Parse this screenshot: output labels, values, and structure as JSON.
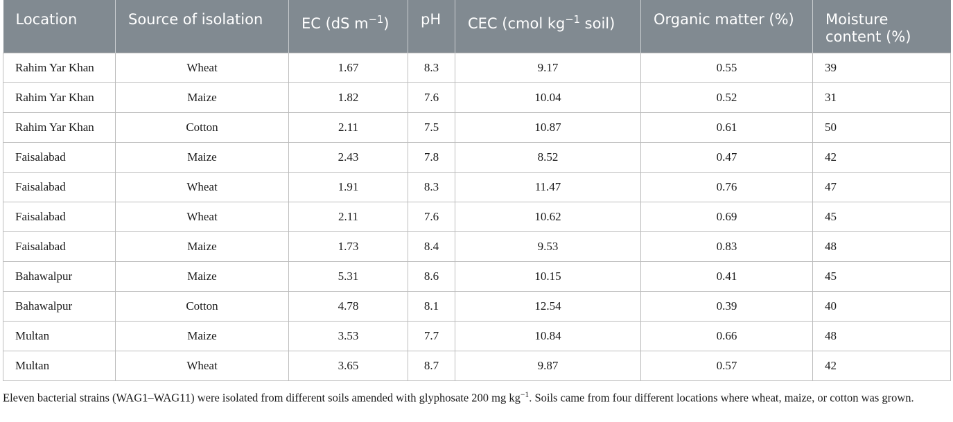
{
  "table": {
    "headers": {
      "location": "Location",
      "source": "Source of isolation",
      "ec_main": "EC (dS m",
      "ec_sup": "−1",
      "ec_end": ")",
      "ph": "pH",
      "cec_main": "CEC (cmol kg",
      "cec_sup": "−1",
      "cec_end": " soil)",
      "om": "Organic matter (%)",
      "mc_line1": "Moisture",
      "mc_line2": "content (%)"
    },
    "rows": [
      {
        "location": "Rahim Yar Khan",
        "source": "Wheat",
        "ec": "1.67",
        "ph": "8.3",
        "cec": "9.17",
        "om": "0.55",
        "mc": "39"
      },
      {
        "location": "Rahim Yar Khan",
        "source": "Maize",
        "ec": "1.82",
        "ph": "7.6",
        "cec": "10.04",
        "om": "0.52",
        "mc": "31"
      },
      {
        "location": "Rahim Yar Khan",
        "source": "Cotton",
        "ec": "2.11",
        "ph": "7.5",
        "cec": "10.87",
        "om": "0.61",
        "mc": "50"
      },
      {
        "location": "Faisalabad",
        "source": "Maize",
        "ec": "2.43",
        "ph": "7.8",
        "cec": "8.52",
        "om": "0.47",
        "mc": "42"
      },
      {
        "location": "Faisalabad",
        "source": "Wheat",
        "ec": "1.91",
        "ph": "8.3",
        "cec": "11.47",
        "om": "0.76",
        "mc": "47"
      },
      {
        "location": "Faisalabad",
        "source": "Wheat",
        "ec": "2.11",
        "ph": "7.6",
        "cec": "10.62",
        "om": "0.69",
        "mc": "45"
      },
      {
        "location": "Faisalabad",
        "source": "Maize",
        "ec": "1.73",
        "ph": "8.4",
        "cec": "9.53",
        "om": "0.83",
        "mc": "48"
      },
      {
        "location": "Bahawalpur",
        "source": "Maize",
        "ec": "5.31",
        "ph": "8.6",
        "cec": "10.15",
        "om": "0.41",
        "mc": "45"
      },
      {
        "location": "Bahawalpur",
        "source": "Cotton",
        "ec": "4.78",
        "ph": "8.1",
        "cec": "12.54",
        "om": "0.39",
        "mc": "40"
      },
      {
        "location": "Multan",
        "source": "Maize",
        "ec": "3.53",
        "ph": "7.7",
        "cec": "10.84",
        "om": "0.66",
        "mc": "48"
      },
      {
        "location": "Multan",
        "source": "Wheat",
        "ec": "3.65",
        "ph": "8.7",
        "cec": "9.87",
        "om": "0.57",
        "mc": "42"
      }
    ]
  },
  "footnote": {
    "part1": "Eleven bacterial strains (WAG1–WAG11) were isolated from different soils amended with glyphosate 200 mg kg",
    "sup": "−1",
    "part2": ". Soils came from four different locations where wheat, maize, or cotton was grown."
  },
  "colors": {
    "header_bg": "#818a91",
    "header_text": "#ffffff",
    "grid": "#bcbcbc"
  }
}
